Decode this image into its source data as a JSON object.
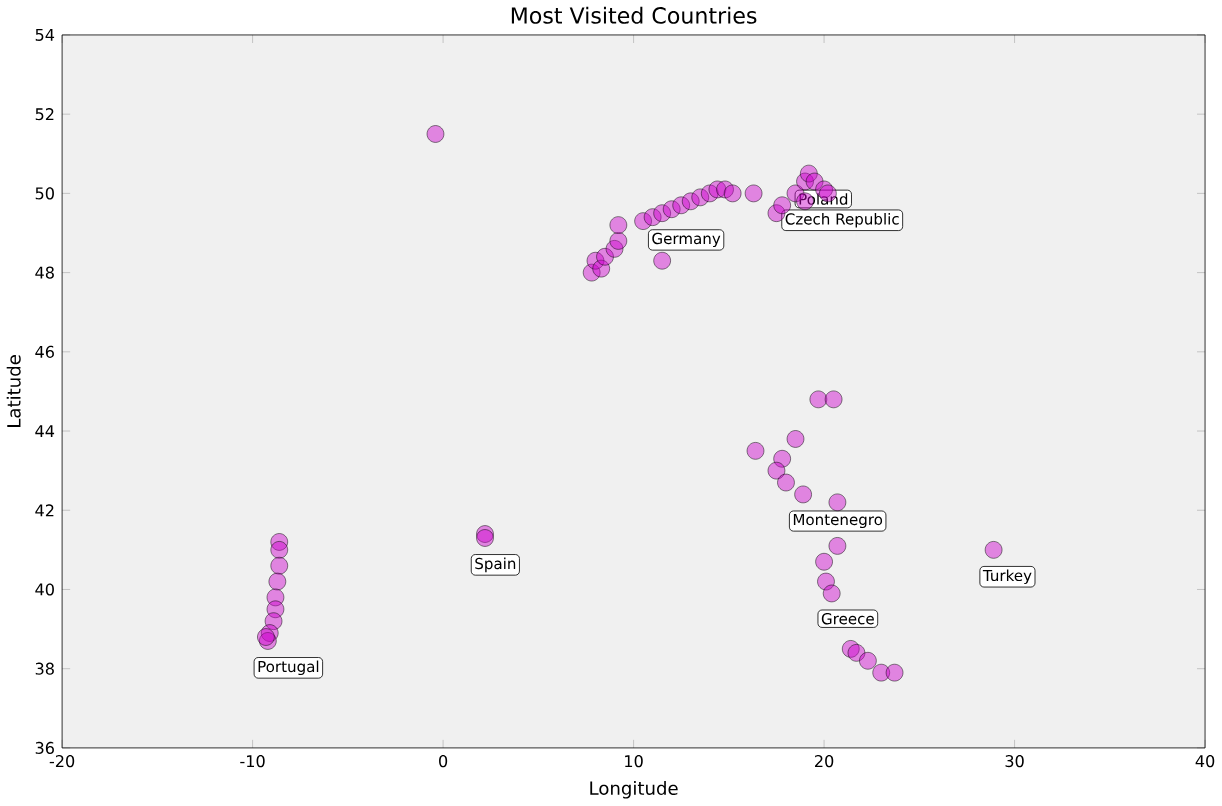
{
  "chart_data": {
    "type": "scatter",
    "title": "Most Visited Countries",
    "xlabel": "Longitude",
    "ylabel": "Latitude",
    "xlim": [
      -20,
      40
    ],
    "ylim": [
      36,
      54
    ],
    "xticks": [
      -20,
      -10,
      0,
      10,
      20,
      30,
      40
    ],
    "yticks": [
      36,
      38,
      40,
      42,
      44,
      46,
      48,
      50,
      52,
      54
    ],
    "marker": "circle",
    "grid": false,
    "series": [
      {
        "color": "#cc00cc",
        "x": [
          -8.6,
          -8.6,
          -8.6,
          -8.7,
          -8.8,
          -8.8,
          -8.9,
          -9.1,
          -9.2,
          -9.3,
          2.2,
          2.2,
          -0.4,
          7.8,
          8.0,
          8.3,
          8.5,
          9.0,
          9.2,
          9.2,
          10.5,
          11.0,
          11.5,
          12.0,
          12.5,
          13.0,
          13.5,
          14.0,
          14.4,
          14.8,
          15.2,
          16.3,
          11.5,
          17.5,
          17.8,
          18.5,
          19.0,
          19.2,
          19.5,
          20.0,
          20.2,
          19.0,
          19.7,
          20.5,
          18.5,
          16.4,
          17.8,
          17.5,
          18.0,
          18.9,
          20.7,
          20.7,
          20.0,
          20.1,
          20.4,
          21.4,
          21.7,
          22.3,
          23.0,
          23.7,
          28.9
        ],
        "values": [
          41.2,
          41.0,
          40.6,
          40.2,
          39.8,
          39.5,
          39.2,
          38.9,
          38.7,
          38.8,
          41.4,
          41.3,
          51.5,
          48.0,
          48.3,
          48.1,
          48.4,
          48.6,
          48.8,
          49.2,
          49.3,
          49.4,
          49.5,
          49.6,
          49.7,
          49.8,
          49.9,
          50.0,
          50.1,
          50.1,
          50.0,
          50.0,
          48.3,
          49.5,
          49.7,
          50.0,
          50.3,
          50.5,
          50.3,
          50.1,
          50.0,
          49.8,
          44.8,
          44.8,
          43.8,
          43.5,
          43.3,
          43.0,
          42.7,
          42.4,
          42.2,
          41.1,
          40.7,
          40.2,
          39.9,
          38.5,
          38.4,
          38.2,
          37.9,
          37.9,
          41.0
        ]
      }
    ],
    "annotations": [
      {
        "text": "Portugal",
        "x": -9.2,
        "y": 38.7
      },
      {
        "text": "Spain",
        "x": 2.2,
        "y": 41.3
      },
      {
        "text": "Germany",
        "x": 11.5,
        "y": 49.5
      },
      {
        "text": "Poland",
        "x": 19.2,
        "y": 50.5
      },
      {
        "text": "Czech Republic",
        "x": 18.5,
        "y": 50.0
      },
      {
        "text": "Montenegro",
        "x": 18.9,
        "y": 42.4
      },
      {
        "text": "Greece",
        "x": 20.4,
        "y": 39.9
      },
      {
        "text": "Turkey",
        "x": 28.9,
        "y": 41.0
      }
    ]
  }
}
